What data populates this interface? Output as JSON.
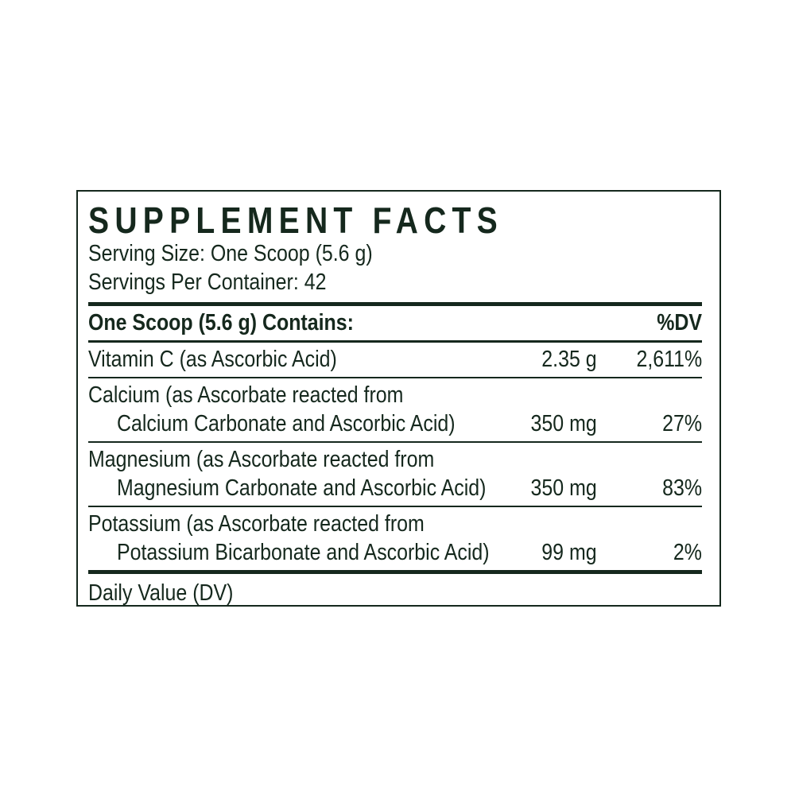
{
  "panel": {
    "title": "SUPPLEMENT FACTS",
    "serving_size": "Serving Size: One Scoop (5.6 g)",
    "servings_per_container": "Servings Per Container: 42",
    "header": {
      "contains_label": "One Scoop (5.6 g) Contains:",
      "dv_label": "%DV"
    },
    "rows": [
      {
        "name": "Vitamin C (as Ascorbic Acid)",
        "name2": "",
        "amount": "2.35 g",
        "dv": "2,611%"
      },
      {
        "name": "Calcium (as Ascorbate reacted from",
        "name2": "Calcium Carbonate and Ascorbic Acid)",
        "amount": "350 mg",
        "dv": "27%"
      },
      {
        "name": "Magnesium (as Ascorbate reacted from",
        "name2": "Magnesium Carbonate and Ascorbic Acid)",
        "amount": "350 mg",
        "dv": "83%"
      },
      {
        "name": "Potassium (as Ascorbate reacted from",
        "name2": "Potassium Bicarbonate and Ascorbic Acid)",
        "amount": "99 mg",
        "dv": "2%"
      }
    ],
    "footnote": "Daily Value (DV)",
    "colors": {
      "ink": "#15281d",
      "background": "#ffffff"
    }
  }
}
